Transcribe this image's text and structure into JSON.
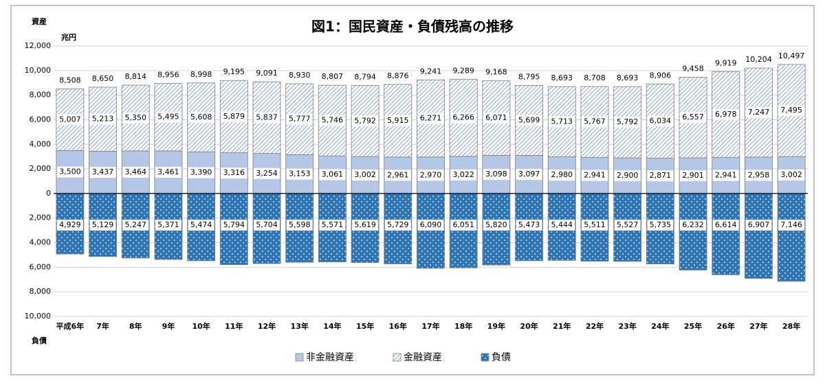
{
  "chart_data": {
    "type": "stacked-bar",
    "title": "図1：国民資産・負債残高の推移",
    "y_label_top": "資産",
    "y_unit": "兆円",
    "y_label_bottom": "負債",
    "categories": [
      "平成6年",
      "7年",
      "8年",
      "9年",
      "10年",
      "11年",
      "12年",
      "13年",
      "14年",
      "15年",
      "16年",
      "17年",
      "18年",
      "19年",
      "20年",
      "21年",
      "22年",
      "23年",
      "24年",
      "25年",
      "26年",
      "27年",
      "28年"
    ],
    "series": [
      {
        "name": "非金融資産",
        "color": "#b4c7e7",
        "pattern": "solid",
        "values": [
          3500,
          3437,
          3464,
          3461,
          3390,
          3316,
          3254,
          3153,
          3061,
          3002,
          2961,
          2970,
          3022,
          3098,
          3097,
          2980,
          2941,
          2900,
          2871,
          2901,
          2941,
          2958,
          3002
        ],
        "value_labels": [
          "3,500",
          "3,437",
          "3,464",
          "3,461",
          "3,390",
          "3,316",
          "3,254",
          "3,153",
          "3,061",
          "3,002",
          "2,961",
          "2,970",
          "3,022",
          "3,098",
          "3,097",
          "2,980",
          "2,941",
          "2,900",
          "2,871",
          "2,901",
          "2,941",
          "2,958",
          "3,002"
        ]
      },
      {
        "name": "金融資産",
        "color": "#8ea9d8",
        "pattern": "hatch",
        "values": [
          5007,
          5213,
          5350,
          5495,
          5608,
          5879,
          5837,
          5777,
          5746,
          5792,
          5915,
          6271,
          6266,
          6071,
          5699,
          5713,
          5767,
          5792,
          6034,
          6557,
          6978,
          7247,
          7495
        ],
        "value_labels": [
          "5,007",
          "5,213",
          "5,350",
          "5,495",
          "5,608",
          "5,879",
          "5,837",
          "5,777",
          "5,746",
          "5,792",
          "5,915",
          "6,271",
          "6,266",
          "6,071",
          "5,699",
          "5,713",
          "5,767",
          "5,792",
          "6,034",
          "6,557",
          "6,978",
          "7,247",
          "7,495"
        ]
      },
      {
        "name": "負債",
        "color": "#2e75b6",
        "pattern": "dots",
        "values": [
          -4929,
          -5129,
          -5247,
          -5371,
          -5474,
          -5794,
          -5704,
          -5598,
          -5571,
          -5619,
          -5729,
          -6090,
          -6051,
          -5820,
          -5473,
          -5444,
          -5511,
          -5527,
          -5735,
          -6232,
          -6614,
          -6907,
          -7146
        ],
        "value_labels": [
          "4,929",
          "5,129",
          "5,247",
          "5,371",
          "5,474",
          "5,794",
          "5,704",
          "5,598",
          "5,571",
          "5,619",
          "5,729",
          "6,090",
          "6,051",
          "5,820",
          "5,473",
          "5,444",
          "5,511",
          "5,527",
          "5,735",
          "6,232",
          "6,614",
          "6,907",
          "7,146"
        ]
      }
    ],
    "totals": [
      8508,
      8650,
      8814,
      8956,
      8998,
      9195,
      9091,
      8930,
      8807,
      8794,
      8876,
      9241,
      9289,
      9168,
      8795,
      8693,
      8708,
      8693,
      8906,
      9458,
      9919,
      10204,
      10497
    ],
    "total_labels": [
      "8,508",
      "8,650",
      "8,814",
      "8,956",
      "8,998",
      "9,195",
      "9,091",
      "8,930",
      "8,807",
      "8,794",
      "8,876",
      "9,241",
      "9,289",
      "9,168",
      "8,795",
      "8,693",
      "8,708",
      "8,693",
      "8,906",
      "9,458",
      "9,919",
      "10,204",
      "10,497"
    ],
    "ylim": [
      -10000,
      12000
    ],
    "yticks": [
      {
        "value": 12000,
        "label": "12,000"
      },
      {
        "value": 10000,
        "label": "10,000"
      },
      {
        "value": 8000,
        "label": "8,000"
      },
      {
        "value": 6000,
        "label": "6,000"
      },
      {
        "value": 4000,
        "label": "4,000"
      },
      {
        "value": 2000,
        "label": "2,000"
      },
      0,
      {
        "value": -2000,
        "label": "2,000"
      },
      {
        "value": -4000,
        "label": "4,000"
      },
      {
        "value": -6000,
        "label": "6,000"
      },
      {
        "value": -8000,
        "label": "8,000"
      },
      {
        "value": -10000,
        "label": "10,000"
      }
    ],
    "grid": true,
    "legend": "bottom"
  }
}
